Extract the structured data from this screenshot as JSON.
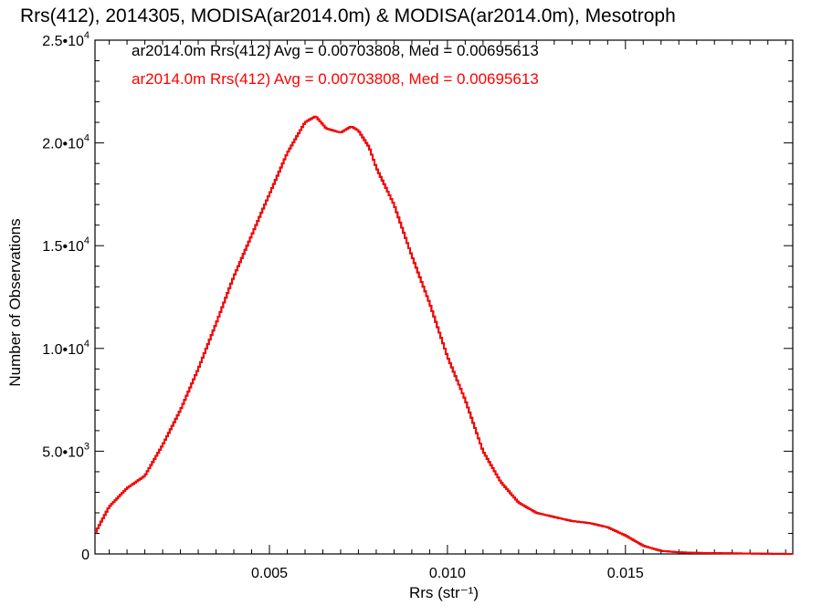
{
  "chart_data": {
    "type": "line",
    "title": "Rrs(412), 2014305, MODISA(ar2014.0m) & MODISA(ar2014.0m), Mesotroph",
    "xlabel": "Rrs (str⁻¹)",
    "ylabel": "Number of Observations",
    "xlim": [
      0.0001,
      0.0197
    ],
    "ylim": [
      0,
      25000
    ],
    "x_ticks": [
      {
        "value": 0.005,
        "label": "0.005"
      },
      {
        "value": 0.01,
        "label": "0.010"
      },
      {
        "value": 0.015,
        "label": "0.015"
      }
    ],
    "y_ticks": [
      {
        "value": 0,
        "label": "0"
      },
      {
        "value": 5000,
        "mantissa": "5.0•",
        "base": "10",
        "exp": "3"
      },
      {
        "value": 10000,
        "mantissa": "1.0•",
        "base": "10",
        "exp": "4"
      },
      {
        "value": 15000,
        "mantissa": "1.5•",
        "base": "10",
        "exp": "4"
      },
      {
        "value": 20000,
        "mantissa": "2.0•",
        "base": "10",
        "exp": "4"
      },
      {
        "value": 25000,
        "mantissa": "2.5•",
        "base": "10",
        "exp": "4"
      }
    ],
    "grid": false,
    "legend_position": "top-left",
    "series": [
      {
        "name": "ar2014.0m Rrs(412) Avg = 0.00703808, Med = 0.00695613",
        "color": "#000000",
        "x": [
          0.0001,
          0.0005,
          0.001,
          0.0015,
          0.002,
          0.0025,
          0.003,
          0.0035,
          0.004,
          0.0045,
          0.005,
          0.0055,
          0.006,
          0.0063,
          0.0066,
          0.007,
          0.0073,
          0.0075,
          0.0078,
          0.008,
          0.0085,
          0.009,
          0.0095,
          0.01,
          0.0105,
          0.011,
          0.0115,
          0.012,
          0.0125,
          0.013,
          0.0135,
          0.014,
          0.0145,
          0.015,
          0.0155,
          0.016,
          0.0165,
          0.017,
          0.0175,
          0.018,
          0.0185,
          0.019,
          0.0197
        ],
        "y": [
          1000,
          2300,
          3200,
          3800,
          5300,
          7000,
          9000,
          11200,
          13500,
          15500,
          17500,
          19500,
          21000,
          21300,
          20700,
          20500,
          20800,
          20600,
          19800,
          18800,
          17000,
          14500,
          12200,
          9600,
          7500,
          5000,
          3500,
          2500,
          2000,
          1800,
          1600,
          1500,
          1300,
          900,
          400,
          150,
          80,
          50,
          40,
          30,
          20,
          10,
          0
        ]
      },
      {
        "name": "ar2014.0m Rrs(412) Avg = 0.00703808, Med = 0.00695613",
        "color": "#ff0000",
        "x": [
          0.0001,
          0.0005,
          0.001,
          0.0015,
          0.002,
          0.0025,
          0.003,
          0.0035,
          0.004,
          0.0045,
          0.005,
          0.0055,
          0.006,
          0.0063,
          0.0066,
          0.007,
          0.0073,
          0.0075,
          0.0078,
          0.008,
          0.0085,
          0.009,
          0.0095,
          0.01,
          0.0105,
          0.011,
          0.0115,
          0.012,
          0.0125,
          0.013,
          0.0135,
          0.014,
          0.0145,
          0.015,
          0.0155,
          0.016,
          0.0165,
          0.017,
          0.0175,
          0.018,
          0.0185,
          0.019,
          0.0197
        ],
        "y": [
          1000,
          2300,
          3200,
          3800,
          5300,
          7000,
          9000,
          11200,
          13500,
          15500,
          17500,
          19500,
          21000,
          21300,
          20700,
          20500,
          20800,
          20600,
          19800,
          18800,
          17000,
          14500,
          12200,
          9600,
          7500,
          5000,
          3500,
          2500,
          2000,
          1800,
          1600,
          1500,
          1300,
          900,
          400,
          150,
          80,
          50,
          40,
          30,
          20,
          10,
          0
        ]
      }
    ]
  }
}
